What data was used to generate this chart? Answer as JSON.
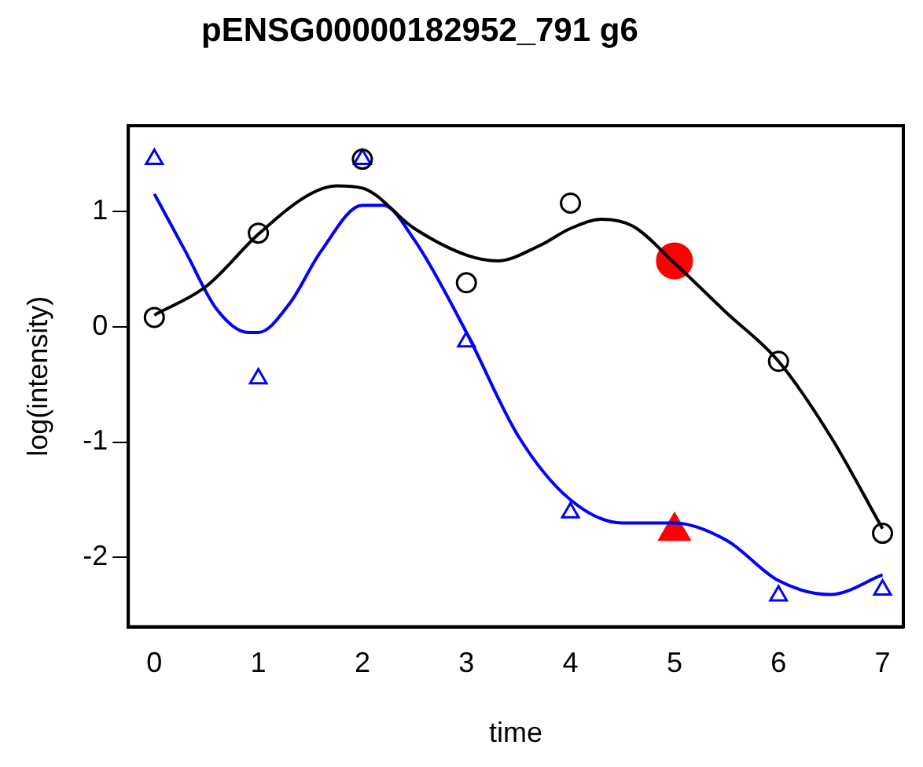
{
  "chart_data": {
    "type": "scatter",
    "title": "pENSG00000182952_791 g6",
    "xlabel": "time",
    "ylabel": "log(intensity)",
    "xlim": [
      -0.25,
      7.2
    ],
    "ylim": [
      -2.6,
      1.74
    ],
    "xticks": [
      0,
      1,
      2,
      3,
      4,
      5,
      6,
      7
    ],
    "yticks": [
      -2,
      -1,
      0,
      1
    ],
    "grid": false,
    "series": [
      {
        "type": "line",
        "color": "#000000",
        "marker": "none",
        "x": [
          0,
          0.5,
          1,
          1.5,
          1.75,
          2,
          2.5,
          3,
          3.3,
          3.7,
          4,
          4.3,
          4.6,
          5,
          5.5,
          6,
          6.5,
          7
        ],
        "values": [
          0.1,
          0.35,
          0.8,
          1.15,
          1.22,
          1.2,
          0.85,
          0.62,
          0.57,
          0.7,
          0.85,
          0.93,
          0.87,
          0.55,
          0.12,
          -0.3,
          -0.95,
          -1.75
        ]
      },
      {
        "type": "line",
        "color": "#0000ff",
        "marker": "none",
        "x": [
          0,
          0.3,
          0.6,
          0.9,
          1,
          1.3,
          1.6,
          2,
          2.2,
          2.5,
          3,
          3.5,
          4,
          4.5,
          5,
          5.5,
          6,
          6.5,
          7
        ],
        "values": [
          1.15,
          0.65,
          0.15,
          -0.05,
          -0.05,
          0.2,
          0.65,
          1.05,
          1.05,
          0.75,
          -0.05,
          -0.95,
          -1.5,
          -1.7,
          -1.7,
          -1.85,
          -2.2,
          -2.32,
          -2.15
        ]
      },
      {
        "type": "scatter",
        "color": "#000000",
        "marker": "circle",
        "x": [
          0,
          1,
          2,
          3,
          4,
          6,
          7
        ],
        "values": [
          0.08,
          0.81,
          1.45,
          0.38,
          1.07,
          -0.3,
          -1.79
        ]
      },
      {
        "type": "scatter",
        "color": "#0000ff",
        "marker": "triangle",
        "x": [
          0,
          1,
          2,
          3,
          4,
          6,
          7
        ],
        "values": [
          1.45,
          -0.45,
          1.45,
          -0.13,
          -1.61,
          -2.33,
          -2.28
        ]
      },
      {
        "type": "scatter",
        "color": "#ff0000",
        "marker": "circle",
        "x": [
          5
        ],
        "values": [
          0.57
        ]
      },
      {
        "type": "scatter",
        "color": "#ff0000",
        "marker": "triangle",
        "x": [
          5
        ],
        "values": [
          -1.77
        ]
      }
    ]
  }
}
